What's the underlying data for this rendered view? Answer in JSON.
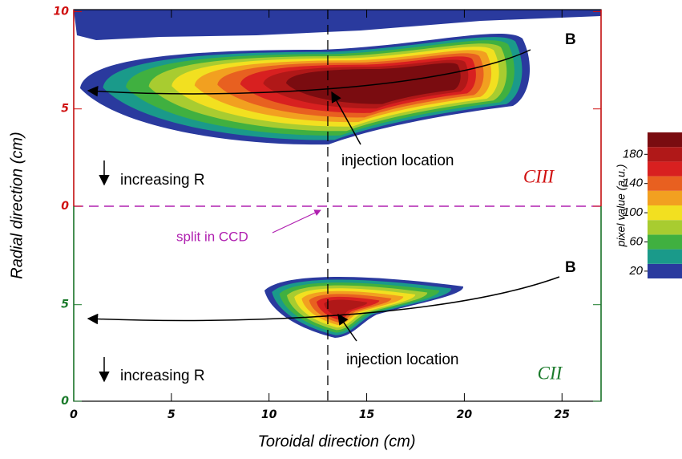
{
  "chart_data": {
    "type": "contour",
    "xlabel": "Toroidal direction (cm)",
    "ylabel": "Radial direction (cm)",
    "xlim": [
      0,
      27
    ],
    "xticks": [
      0,
      5,
      10,
      15,
      20,
      25
    ],
    "panels": [
      {
        "name": "CIII",
        "axis_color": "#d01010",
        "ylim": [
          0,
          10.1
        ],
        "yticks": [
          0,
          5,
          10
        ],
        "field_label": "B",
        "injection_label": "injection location",
        "direction_label": "increasing R"
      },
      {
        "name": "CII",
        "axis_color": "#1a7a2a",
        "ylim": [
          0,
          10.1
        ],
        "yticks": [
          0,
          5
        ],
        "field_label": "B",
        "injection_label": "injection location",
        "direction_label": "increasing R"
      }
    ],
    "split_label": "split in CCD",
    "colorbar": {
      "label": "pixel value (a.u.)",
      "ticks": [
        20,
        60,
        100,
        140,
        180
      ],
      "levels": [
        10,
        30,
        50,
        70,
        90,
        110,
        130,
        150,
        170,
        190,
        210
      ],
      "colors": [
        "#2a3a9e",
        "#1a9a8a",
        "#40b040",
        "#a8cc30",
        "#f2e020",
        "#f2a020",
        "#e86020",
        "#d82020",
        "#b01818",
        "#7a0c10"
      ]
    }
  }
}
